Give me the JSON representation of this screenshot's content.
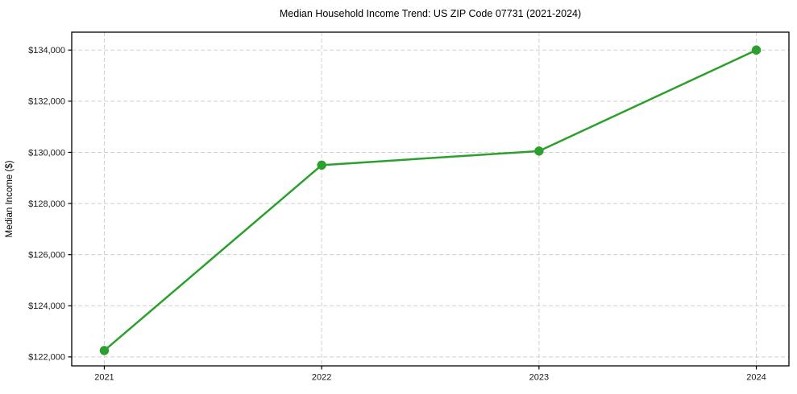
{
  "figure": {
    "background": "#ffffff"
  },
  "chart_data": {
    "type": "line",
    "title": "Median Household Income Trend: US ZIP Code 07731 (2021-2024)",
    "xlabel": "",
    "ylabel": "Median Income ($)",
    "x": [
      2021,
      2022,
      2023,
      2024
    ],
    "x_tick_labels": [
      "2021",
      "2022",
      "2023",
      "2024"
    ],
    "series": [
      {
        "name": "median-household-income",
        "values": [
          122250,
          129500,
          130050,
          134000
        ],
        "color": "#2ca02c",
        "marker": "circle"
      }
    ],
    "y_ticks": [
      122000,
      124000,
      126000,
      128000,
      130000,
      132000,
      134000
    ],
    "y_tick_labels": [
      "$122,000",
      "$124,000",
      "$126,000",
      "$128,000",
      "$130,000",
      "$132,000",
      "$134,000"
    ],
    "xlim": [
      2020.85,
      2024.15
    ],
    "ylim": [
      121650,
      134700
    ],
    "grid": "on",
    "grid_style": "dashed",
    "legend_position": "none",
    "colors": {
      "line": "#2ca02c",
      "grid": "#cfcfcf",
      "axis": "#000000",
      "text": "#1a1a1a",
      "plot_background": "#ffffff"
    }
  }
}
